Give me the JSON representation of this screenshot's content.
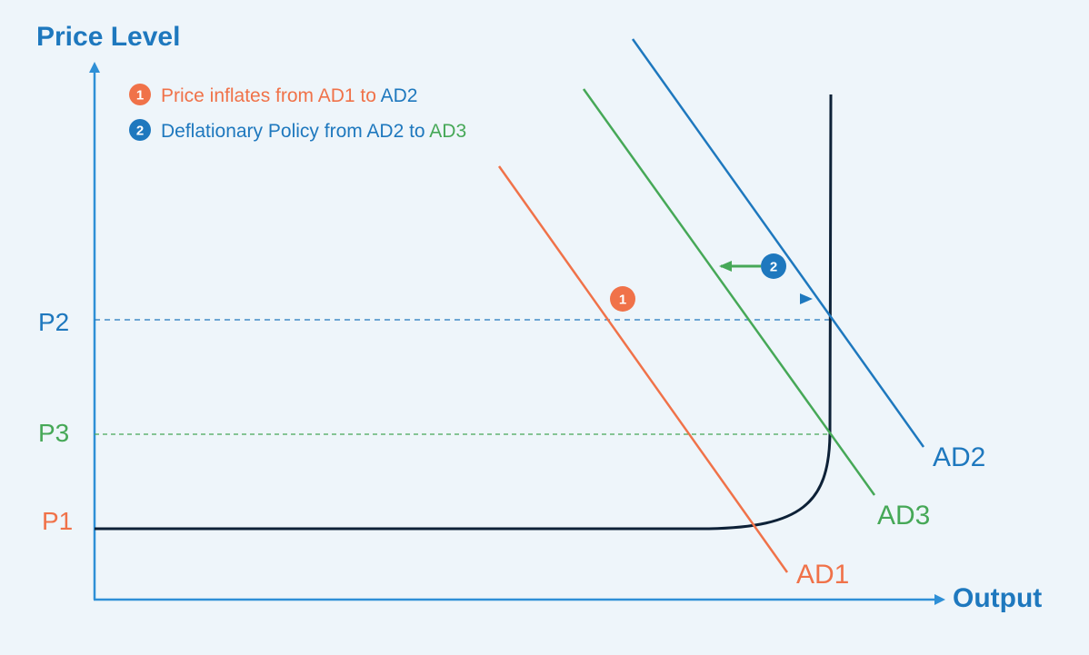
{
  "axes": {
    "y_title": "Price Level",
    "x_title": "Output"
  },
  "levels": {
    "p1": "P1",
    "p2": "P2",
    "p3": "P3"
  },
  "curves": {
    "ad1": "AD1",
    "ad2": "AD2",
    "ad3": "AD3"
  },
  "legend": {
    "item1": {
      "number": "1",
      "text": "Price inflates from AD1 to ",
      "target": "AD2"
    },
    "item2": {
      "number": "2",
      "text": "Deflationary Policy from AD2 to ",
      "target": "AD3"
    }
  },
  "markers": {
    "shift1": "1",
    "shift2": "2"
  },
  "colors": {
    "axis": "#2E8FD6",
    "orange": "#F07249",
    "blue": "#1E78BE",
    "green": "#46A857",
    "supply": "#0D2137",
    "background": "#EEF5FA"
  }
}
